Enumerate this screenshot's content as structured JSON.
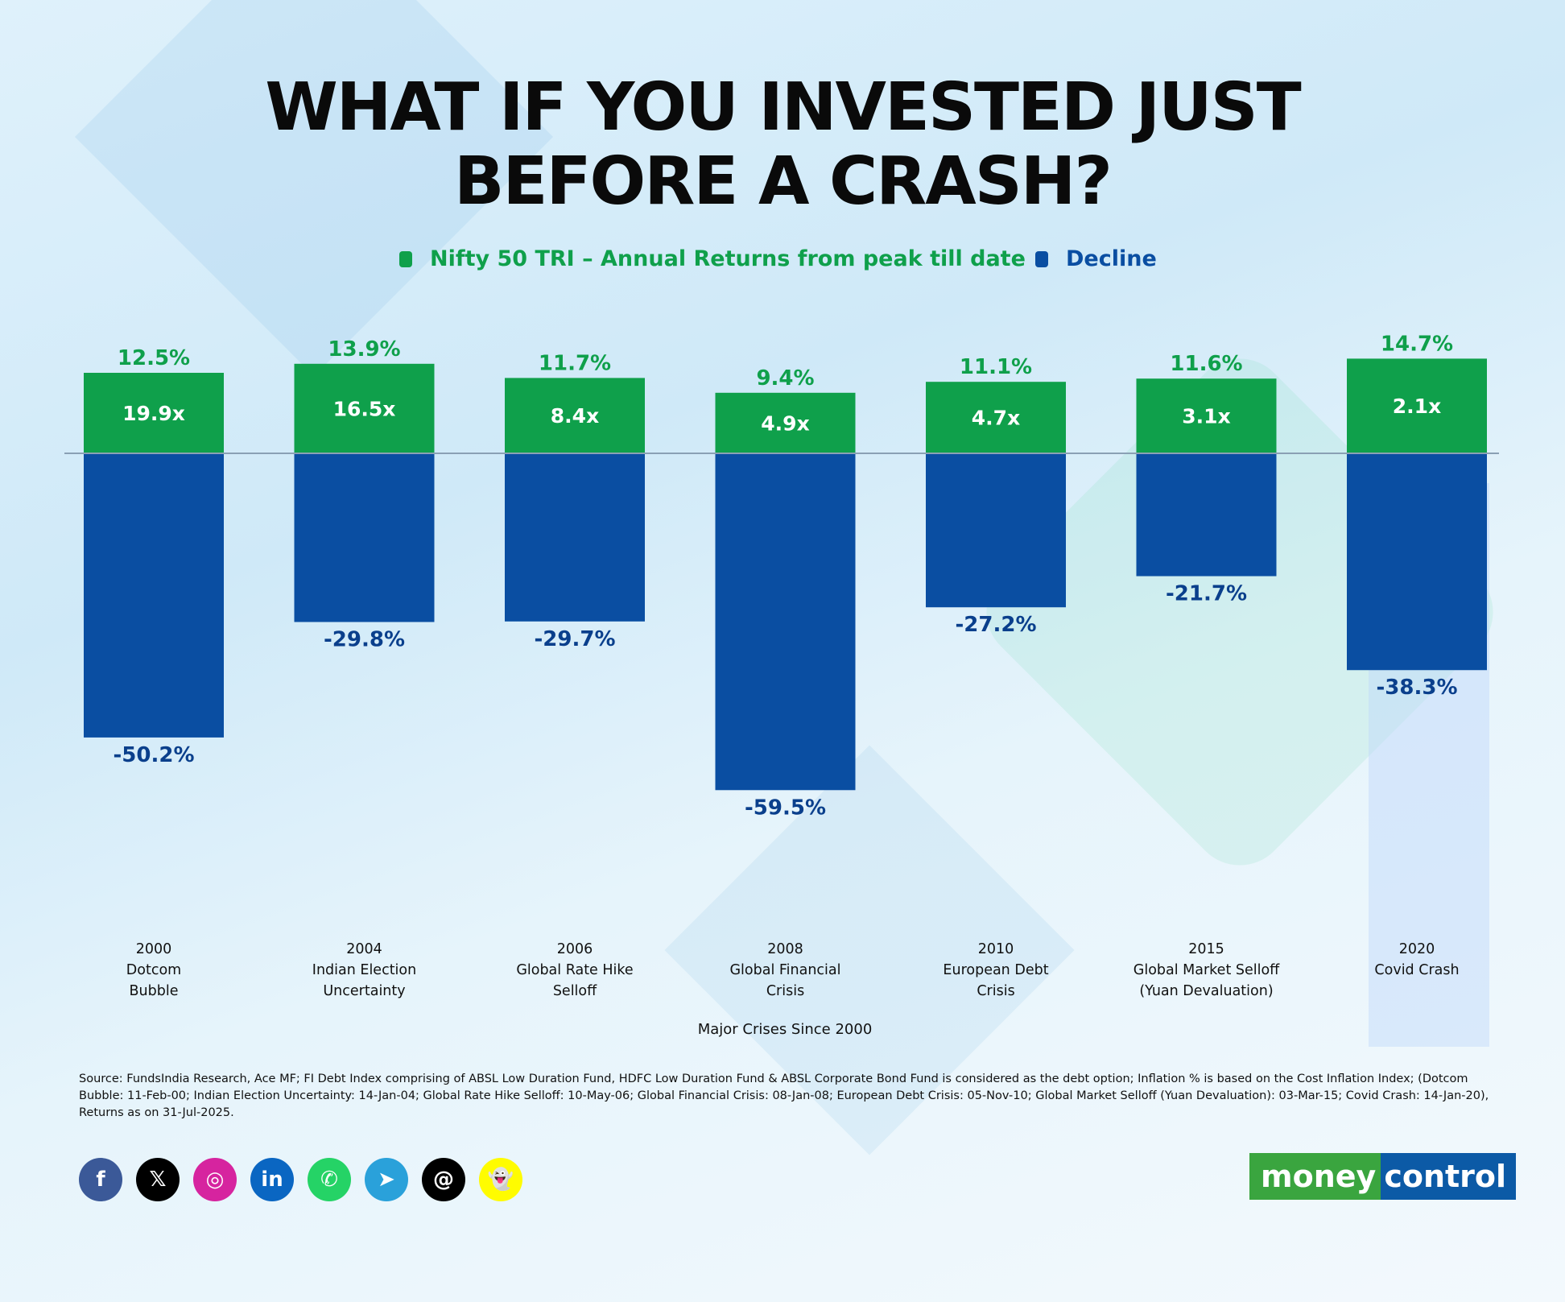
{
  "title_line1": "WHAT IF YOU INVESTED JUST",
  "title_line2": "BEFORE A CRASH?",
  "legend": {
    "green_label": "Nifty 50 TRI – Annual Returns from peak till date",
    "blue_label": "Decline"
  },
  "colors": {
    "green": "#0fa04b",
    "blue": "#0a4ea2",
    "green_text": "#0fa04b",
    "blue_text": "#0a3f8c"
  },
  "chart_data": {
    "type": "bar",
    "xlabel": "Major Crises Since 2000",
    "categories": [
      [
        "2000",
        "Dotcom",
        "Bubble"
      ],
      [
        "2004",
        "Indian Election",
        "Uncertainty"
      ],
      [
        "2006",
        "Global Rate Hike",
        "Selloff"
      ],
      [
        "2008",
        "Global Financial",
        "Crisis"
      ],
      [
        "2010",
        "European Debt",
        "Crisis"
      ],
      [
        "2015",
        "Global Market Selloff",
        "(Yuan Devaluation)"
      ],
      [
        "2020",
        "Covid Crash"
      ]
    ],
    "series": [
      {
        "name": "Nifty 50 TRI – Annual Returns from peak till date",
        "values": [
          12.5,
          13.9,
          11.7,
          9.4,
          11.1,
          11.6,
          14.7
        ],
        "labels": [
          "12.5%",
          "13.9%",
          "11.7%",
          "9.4%",
          "11.1%",
          "11.6%",
          "14.7%"
        ],
        "inner_labels": [
          "19.9x",
          "16.5x",
          "8.4x",
          "4.9x",
          "4.7x",
          "3.1x",
          "2.1x"
        ]
      },
      {
        "name": "Decline",
        "values": [
          -50.2,
          -29.8,
          -29.7,
          -59.5,
          -27.2,
          -21.7,
          -38.3
        ],
        "labels": [
          "-50.2%",
          "-29.8%",
          "-29.7%",
          "-59.5%",
          "-27.2%",
          "-21.7%",
          "-38.3%"
        ]
      }
    ]
  },
  "source_text": "Source: FundsIndia Research, Ace MF; FI Debt Index comprising of ABSL Low Duration Fund, HDFC Low Duration Fund & ABSL Corporate Bond Fund is considered as the debt option; Inflation % is based on the Cost Inflation Index; (Dotcom Bubble: 11-Feb-00; Indian Election Uncertainty: 14-Jan-04; Global Rate Hike Selloff: 10-May-06; Global Financial Crisis: 08-Jan-08; European Debt Crisis: 05-Nov-10; Global Market Selloff (Yuan Devaluation): 03-Mar-15; Covid Crash: 14-Jan-20), Returns as on 31-Jul-2025.",
  "social_icons": [
    {
      "name": "facebook-icon",
      "glyph": "f",
      "color": "#3b5998"
    },
    {
      "name": "x-icon",
      "glyph": "𝕏",
      "color": "#000000"
    },
    {
      "name": "instagram-icon",
      "glyph": "◎",
      "color": "#d6249f"
    },
    {
      "name": "linkedin-icon",
      "glyph": "in",
      "color": "#0a66c2"
    },
    {
      "name": "whatsapp-icon",
      "glyph": "✆",
      "color": "#25d366"
    },
    {
      "name": "telegram-icon",
      "glyph": "➤",
      "color": "#2aa1da"
    },
    {
      "name": "threads-icon",
      "glyph": "@",
      "color": "#000000"
    },
    {
      "name": "snapchat-icon",
      "glyph": "👻",
      "color": "#fffc00"
    }
  ],
  "logo": {
    "part1": "money",
    "part2": "control"
  }
}
